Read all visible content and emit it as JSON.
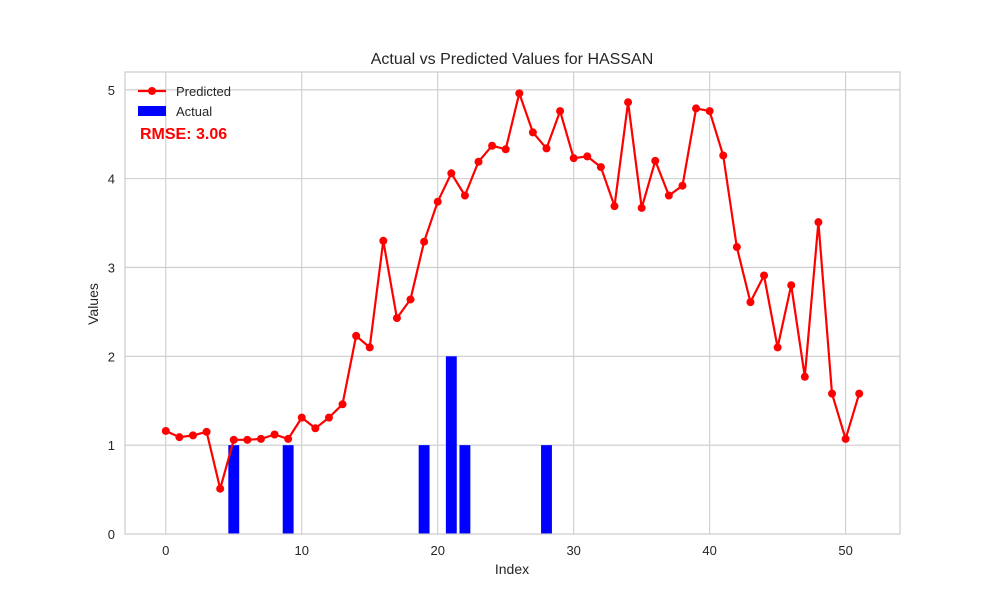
{
  "chart_data": {
    "type": "line",
    "title": "Actual vs Predicted Values for HASSAN",
    "xlabel": "Index",
    "ylabel": "Values",
    "xlim": [
      -3,
      54
    ],
    "ylim": [
      0,
      5.2
    ],
    "xticks": [
      0,
      10,
      20,
      30,
      40,
      50
    ],
    "yticks": [
      0,
      1,
      2,
      3,
      4,
      5
    ],
    "grid": true,
    "legend_position": "top-left",
    "annotation": "RMSE: 3.06",
    "series": [
      {
        "name": "Predicted",
        "kind": "line",
        "color": "#ff0000",
        "x": [
          0,
          1,
          2,
          3,
          4,
          5,
          6,
          7,
          8,
          9,
          10,
          11,
          12,
          13,
          14,
          15,
          16,
          17,
          18,
          19,
          20,
          21,
          22,
          23,
          24,
          25,
          26,
          27,
          28,
          29,
          30,
          31,
          32,
          33,
          34,
          35,
          36,
          37,
          38,
          39,
          40,
          41,
          42,
          43,
          44,
          45,
          46,
          47,
          48,
          49,
          50,
          51
        ],
        "values": [
          1.16,
          1.09,
          1.11,
          1.15,
          0.51,
          1.06,
          1.06,
          1.07,
          1.12,
          1.07,
          1.31,
          1.19,
          1.31,
          1.46,
          2.23,
          2.1,
          3.3,
          2.43,
          2.64,
          3.29,
          3.74,
          4.06,
          3.81,
          4.19,
          4.37,
          4.33,
          4.96,
          4.52,
          4.34,
          4.76,
          4.23,
          4.25,
          4.13,
          3.69,
          4.86,
          3.67,
          4.2,
          3.81,
          3.92,
          4.79,
          4.76,
          4.26,
          3.23,
          2.61,
          2.91,
          2.1,
          2.8,
          1.77,
          3.51,
          1.58,
          1.07,
          1.58
        ]
      },
      {
        "name": "Actual",
        "kind": "bar",
        "color": "#0000ff",
        "x": [
          5,
          9,
          19,
          21,
          22,
          28
        ],
        "values": [
          1,
          1,
          1,
          2,
          1,
          1
        ]
      }
    ]
  }
}
